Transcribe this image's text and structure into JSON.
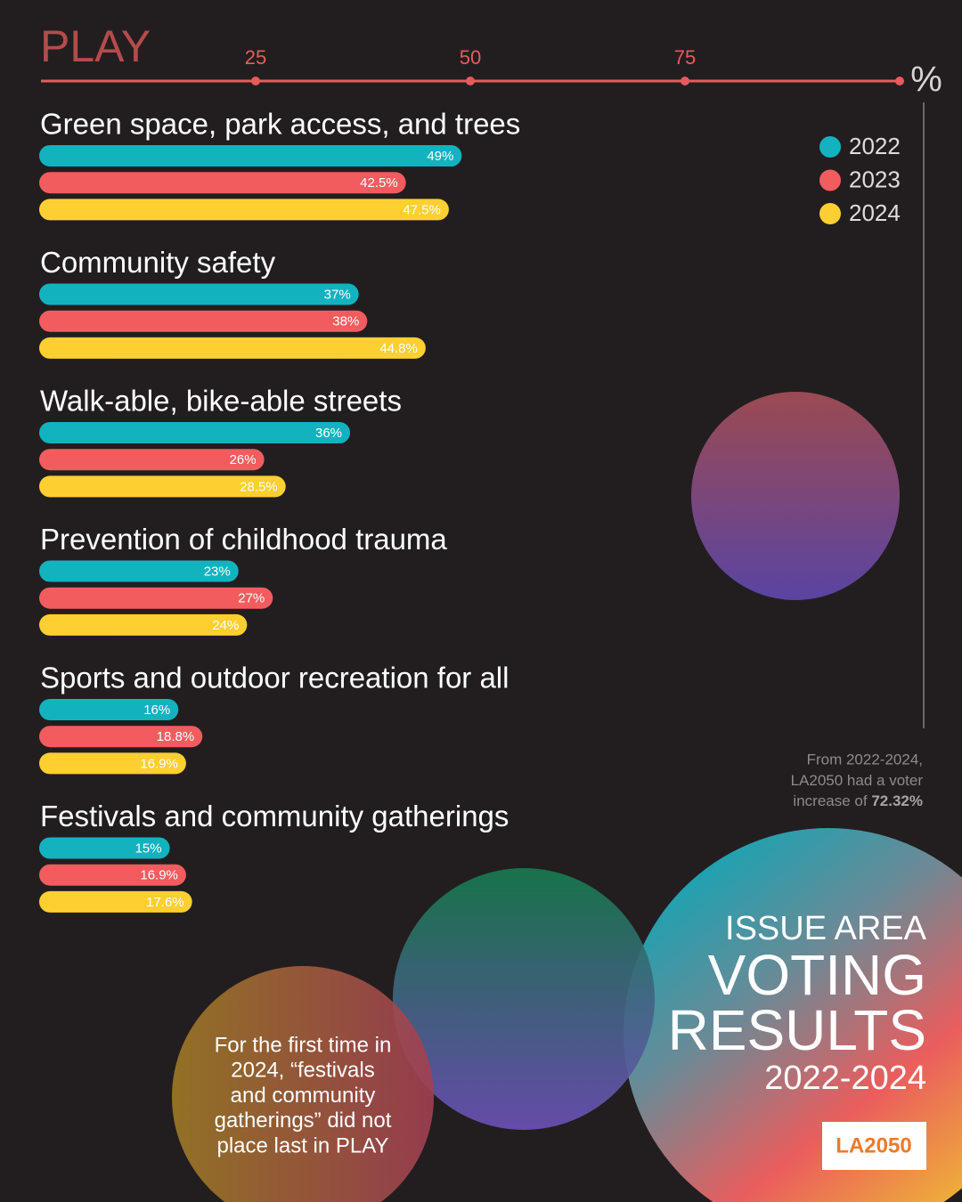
{
  "chart_data": {
    "type": "bar",
    "orientation": "horizontal",
    "title": "PLAY",
    "x_label": "%",
    "xlim": [
      0,
      100
    ],
    "xticks": [
      25,
      50,
      75
    ],
    "categories": [
      "Green space, park access, and trees",
      "Community safety",
      "Walk-able, bike-able streets",
      "Prevention of childhood trauma",
      "Sports and outdoor recreation for all",
      "Festivals and community gatherings"
    ],
    "series": [
      {
        "name": "2022",
        "color": "#12b3bf",
        "values": [
          49,
          37,
          36,
          23,
          16,
          15
        ],
        "value_labels": [
          "49%",
          "37%",
          "36%",
          "23%",
          "16%",
          "15%"
        ]
      },
      {
        "name": "2023",
        "color": "#f25c5f",
        "values": [
          42.5,
          38,
          26,
          27,
          18.8,
          16.9
        ],
        "value_labels": [
          "42.5%",
          "38%",
          "26%",
          "27%",
          "18.8%",
          "16.9%"
        ]
      },
      {
        "name": "2024",
        "color": "#fdcf31",
        "values": [
          47.5,
          44.8,
          28.5,
          24,
          16.9,
          17.6
        ],
        "value_labels": [
          "47.5%",
          "44.8%",
          "28.5%",
          "24%",
          "16.9%",
          "17.6%"
        ]
      }
    ],
    "legend": "top-right",
    "note": {
      "lines": [
        "From 2022-2024,",
        "LA2050 had a voter",
        "increase of"
      ],
      "highlight": "72.32%"
    },
    "callout": [
      "For the first time in",
      "2024, “festivals",
      "and community",
      "gatherings” did not",
      "place last in PLAY"
    ],
    "heading": {
      "kicker": "ISSUE AREA",
      "line1": "VOTING",
      "line2": "RESULTS",
      "years": "2022-2024"
    },
    "logo": "LA2050"
  }
}
